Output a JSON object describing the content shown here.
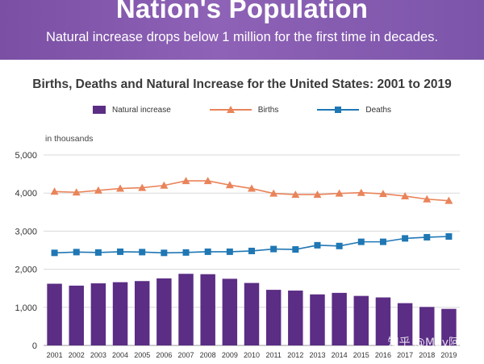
{
  "banner": {
    "title": "Nation's Population",
    "subtitle": "Natural increase drops below 1 million for the first time in decades."
  },
  "watermark": "知乎 @May阿密",
  "chart_data": {
    "type": "bar",
    "title": "Births, Deaths and Natural Increase for the United States: 2001 to 2019",
    "ylabel": "in thousands",
    "xlabel": "",
    "ylim": [
      0,
      5000
    ],
    "yticks": [
      0,
      1000,
      2000,
      3000,
      4000,
      5000
    ],
    "ytick_labels": [
      "0",
      "1,000",
      "2,000",
      "3,000",
      "4,000",
      "5,000"
    ],
    "grid": true,
    "legend_position": "top-center",
    "categories": [
      "2001",
      "2002",
      "2003",
      "2004",
      "2005",
      "2006",
      "2007",
      "2008",
      "2009",
      "2010",
      "2011",
      "2012",
      "2013",
      "2014",
      "2015",
      "2016",
      "2017",
      "2018",
      "2019"
    ],
    "series": [
      {
        "name": "Natural increase",
        "kind": "bar",
        "color": "#5b2d85",
        "values": [
          1620,
          1570,
          1630,
          1660,
          1690,
          1760,
          1880,
          1870,
          1750,
          1640,
          1460,
          1440,
          1340,
          1380,
          1300,
          1260,
          1110,
          1010,
          960
        ]
      },
      {
        "name": "Births",
        "kind": "line",
        "marker": "triangle",
        "color": "#e9845a",
        "values": [
          4040,
          4020,
          4070,
          4120,
          4140,
          4200,
          4320,
          4320,
          4210,
          4120,
          3990,
          3960,
          3960,
          3990,
          4010,
          3980,
          3920,
          3840,
          3800
        ]
      },
      {
        "name": "Deaths",
        "kind": "line",
        "marker": "square",
        "color": "#1f77b4",
        "values": [
          2430,
          2450,
          2440,
          2460,
          2450,
          2430,
          2440,
          2460,
          2460,
          2480,
          2530,
          2520,
          2630,
          2610,
          2720,
          2720,
          2810,
          2840,
          2860
        ]
      }
    ]
  }
}
